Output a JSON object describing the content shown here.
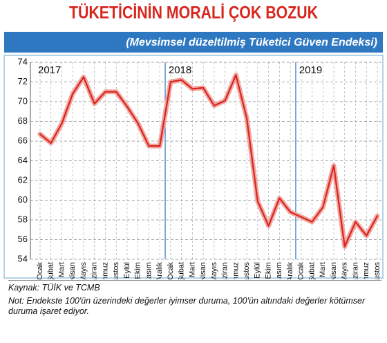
{
  "chart_data": {
    "type": "line",
    "title": "TÜKETİCİNİN MORALİ ÇOK BOZUK",
    "subtitle": "(Mevsimsel düzeltilmiş Tüketici Güven Endeksi)",
    "annotations": [
      "2017",
      "2018",
      "2019"
    ],
    "categories": [
      "Ocak",
      "Şubat",
      "Mart",
      "Nisan",
      "Mayıs",
      "Haziran",
      "Temmuz",
      "Ağustos",
      "Eylül",
      "Ekim",
      "Kasım",
      "Aralık",
      "Ocak",
      "Şubat",
      "Mart",
      "Nisan",
      "Mayıs",
      "Haziran",
      "Temmuz",
      "Ağustos",
      "Eylül",
      "Ekim",
      "Kasım",
      "Aralık",
      "Ocak",
      "Şubat",
      "Mart",
      "Nisan",
      "Mayıs",
      "Haziran",
      "Temmuz",
      "Ağustos"
    ],
    "values": [
      66.7,
      65.8,
      67.8,
      70.8,
      72.5,
      69.8,
      71.0,
      71.0,
      69.5,
      67.8,
      65.5,
      65.5,
      72.0,
      72.2,
      71.3,
      71.4,
      69.6,
      70.1,
      72.7,
      68.3,
      59.9,
      57.4,
      60.2,
      58.8,
      58.3,
      57.8,
      59.3,
      63.5,
      55.3,
      57.8,
      56.4,
      58.4
    ],
    "color": "#d7261e",
    "ylim": [
      54,
      74
    ],
    "yticks": [
      54,
      56,
      58,
      60,
      62,
      64,
      66,
      68,
      70,
      72,
      74
    ],
    "grid": true,
    "source": "Kaynak: TÜİK ve TCMB",
    "note": "Not: Endekste 100'ün üzerindeki değerler iyimser duruma, 100'ün altındaki değerler kötümser duruma işaret ediyor."
  }
}
